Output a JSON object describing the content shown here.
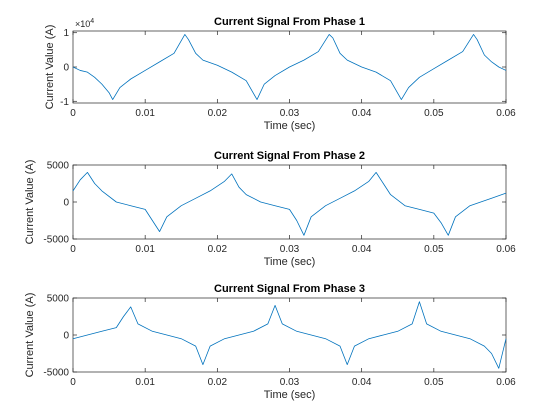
{
  "colors": {
    "series": "#0072BD",
    "axis": "#262626"
  },
  "chart_data": [
    {
      "type": "line",
      "title": "Current Signal From Phase 1",
      "xlabel": "Time (sec)",
      "ylabel": "Current Value (A)",
      "xlim": [
        0,
        0.06
      ],
      "ylim": [
        -10500,
        10500
      ],
      "x_ticks": [
        0,
        0.01,
        0.02,
        0.03,
        0.04,
        0.05,
        0.06
      ],
      "x_tick_labels": [
        "0",
        "0.01",
        "0.02",
        "0.03",
        "0.04",
        "0.05",
        "0.06"
      ],
      "y_ticks": [
        -10000,
        0,
        10000
      ],
      "y_tick_labels": [
        "-1",
        "0",
        "1"
      ],
      "y_exponent_label": "×10",
      "y_exponent_power": "4",
      "series": [
        {
          "x": [
            0,
            0.001,
            0.002,
            0.003,
            0.004,
            0.005,
            0.0055,
            0.0065,
            0.008,
            0.01,
            0.012,
            0.014,
            0.0155,
            0.016,
            0.017,
            0.018,
            0.02,
            0.022,
            0.024,
            0.0255,
            0.0265,
            0.028,
            0.03,
            0.032,
            0.034,
            0.0355,
            0.036,
            0.037,
            0.038,
            0.04,
            0.042,
            0.044,
            0.0455,
            0.0465,
            0.048,
            0.05,
            0.052,
            0.054,
            0.0555,
            0.056,
            0.057,
            0.058,
            0.059,
            0.06
          ],
          "y": [
            0,
            -1000,
            -1500,
            -3000,
            -5000,
            -7500,
            -9500,
            -6000,
            -3500,
            -1000,
            1500,
            4000,
            9500,
            8000,
            4000,
            2000,
            500,
            -1500,
            -4000,
            -9500,
            -5000,
            -2500,
            0,
            2000,
            4500,
            9500,
            8500,
            4000,
            2000,
            0,
            -1500,
            -4000,
            -9500,
            -6000,
            -3000,
            -500,
            2000,
            4500,
            9500,
            8000,
            3500,
            1500,
            0,
            -1000
          ]
        }
      ]
    },
    {
      "type": "line",
      "title": "Current Signal From Phase 2",
      "xlabel": "Time (sec)",
      "ylabel": "Current Value (A)",
      "xlim": [
        0,
        0.06
      ],
      "ylim": [
        -5000,
        5000
      ],
      "x_ticks": [
        0,
        0.01,
        0.02,
        0.03,
        0.04,
        0.05,
        0.06
      ],
      "x_tick_labels": [
        "0",
        "0.01",
        "0.02",
        "0.03",
        "0.04",
        "0.05",
        "0.06"
      ],
      "y_ticks": [
        -5000,
        0,
        5000
      ],
      "y_tick_labels": [
        "-5000",
        "0",
        "5000"
      ],
      "series": [
        {
          "x": [
            0,
            0.001,
            0.002,
            0.003,
            0.004,
            0.006,
            0.008,
            0.01,
            0.011,
            0.012,
            0.013,
            0.015,
            0.017,
            0.019,
            0.021,
            0.022,
            0.023,
            0.024,
            0.026,
            0.028,
            0.03,
            0.031,
            0.032,
            0.033,
            0.035,
            0.037,
            0.039,
            0.041,
            0.042,
            0.043,
            0.044,
            0.046,
            0.048,
            0.05,
            0.051,
            0.052,
            0.053,
            0.055,
            0.058,
            0.06
          ],
          "y": [
            1500,
            3000,
            4000,
            2500,
            1500,
            0,
            -500,
            -1000,
            -2500,
            -4000,
            -2000,
            -500,
            500,
            1500,
            2800,
            3800,
            2000,
            1000,
            0,
            -500,
            -1000,
            -2500,
            -4500,
            -2000,
            -500,
            500,
            1500,
            2800,
            4000,
            2500,
            1000,
            -500,
            -1000,
            -1500,
            -2800,
            -4500,
            -2000,
            -500,
            500,
            1200
          ]
        }
      ]
    },
    {
      "type": "line",
      "title": "Current Signal From Phase 3",
      "xlabel": "Time (sec)",
      "ylabel": "Current Value (A)",
      "xlim": [
        0,
        0.06
      ],
      "ylim": [
        -5000,
        5000
      ],
      "x_ticks": [
        0,
        0.01,
        0.02,
        0.03,
        0.04,
        0.05,
        0.06
      ],
      "x_tick_labels": [
        "0",
        "0.01",
        "0.02",
        "0.03",
        "0.04",
        "0.05",
        "0.06"
      ],
      "y_ticks": [
        -5000,
        0,
        5000
      ],
      "y_tick_labels": [
        "-5000",
        "0",
        "5000"
      ],
      "series": [
        {
          "x": [
            0,
            0.002,
            0.004,
            0.006,
            0.007,
            0.008,
            0.009,
            0.011,
            0.013,
            0.015,
            0.017,
            0.018,
            0.019,
            0.021,
            0.023,
            0.025,
            0.027,
            0.028,
            0.029,
            0.031,
            0.033,
            0.035,
            0.037,
            0.038,
            0.039,
            0.041,
            0.043,
            0.045,
            0.047,
            0.048,
            0.049,
            0.051,
            0.053,
            0.055,
            0.057,
            0.058,
            0.059,
            0.06
          ],
          "y": [
            -500,
            0,
            500,
            1000,
            2500,
            3800,
            1500,
            500,
            0,
            -500,
            -1500,
            -4000,
            -1500,
            -500,
            0,
            500,
            1500,
            4000,
            1500,
            500,
            0,
            -500,
            -1500,
            -4000,
            -1500,
            -500,
            0,
            500,
            1500,
            4500,
            1500,
            500,
            0,
            -500,
            -1500,
            -2500,
            -4500,
            -500
          ]
        }
      ]
    }
  ]
}
